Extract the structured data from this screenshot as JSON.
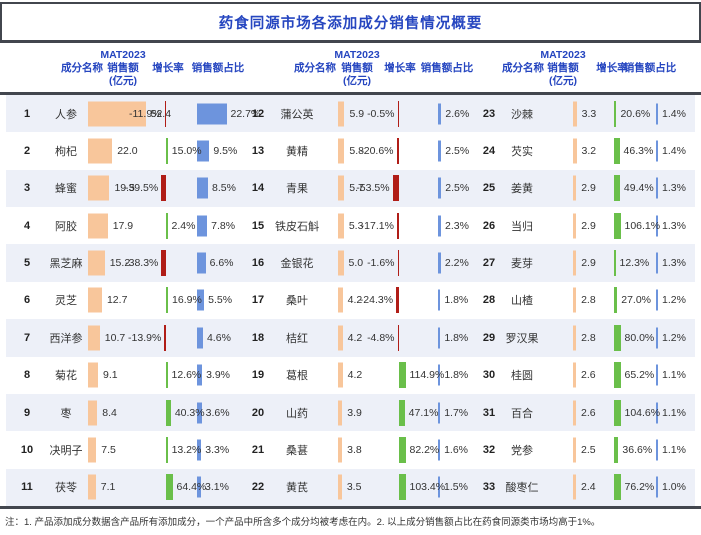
{
  "title": "药食同源市场各添加成分销售情况概要",
  "header": {
    "name": "成分名称",
    "sales_lines": [
      "MAT2023",
      "销售额",
      "(亿元)"
    ],
    "growth": "增长率",
    "share": "销售额占比"
  },
  "footnote": "注：1. 产品添加成分数据含产品所有添加成分，一个产品中所含多个成分均被考虑在内。2. 以上成分销售额占比在药食同源类市场均高于1%。",
  "colors": {
    "title_blue": "#2646c0",
    "bar_orange": "#f8c69b",
    "bar_blue": "#6d94dd",
    "bar_green": "#6abf4a",
    "bar_red": "#b01d17",
    "stripe": "#edf0f8",
    "rule": "#42464e"
  },
  "chart_data": {
    "type": "table",
    "title": "药食同源市场各添加成分销售情况概要",
    "columns": [
      "成分名称",
      "MAT2023销售额(亿元)",
      "增长率",
      "销售额占比"
    ],
    "sales_unit": "亿元",
    "groups": [
      {
        "rows": [
          {
            "rank": 1,
            "name": "人参",
            "sales": 52.4,
            "growth_pct": -11.9,
            "share_pct": 22.7
          },
          {
            "rank": 2,
            "name": "枸杞",
            "sales": 22.0,
            "growth_pct": 15.0,
            "share_pct": 9.5
          },
          {
            "rank": 3,
            "name": "蜂蜜",
            "sales": 19.5,
            "growth_pct": -39.5,
            "share_pct": 8.5
          },
          {
            "rank": 4,
            "name": "阿胶",
            "sales": 17.9,
            "growth_pct": 2.4,
            "share_pct": 7.8
          },
          {
            "rank": 5,
            "name": "黑芝麻",
            "sales": 15.2,
            "growth_pct": -38.3,
            "share_pct": 6.6
          },
          {
            "rank": 6,
            "name": "灵芝",
            "sales": 12.7,
            "growth_pct": 16.9,
            "share_pct": 5.5
          },
          {
            "rank": 7,
            "name": "西洋参",
            "sales": 10.7,
            "growth_pct": -13.9,
            "share_pct": 4.6
          },
          {
            "rank": 8,
            "name": "菊花",
            "sales": 9.1,
            "growth_pct": 12.6,
            "share_pct": 3.9
          },
          {
            "rank": 9,
            "name": "枣",
            "sales": 8.4,
            "growth_pct": 40.3,
            "share_pct": 3.6
          },
          {
            "rank": 10,
            "name": "决明子",
            "sales": 7.5,
            "growth_pct": 13.2,
            "share_pct": 3.3
          },
          {
            "rank": 11,
            "name": "茯苓",
            "sales": 7.1,
            "growth_pct": 64.4,
            "share_pct": 3.1
          }
        ]
      },
      {
        "rows": [
          {
            "rank": 12,
            "name": "蒲公英",
            "sales": 5.9,
            "growth_pct": -0.5,
            "share_pct": 2.6
          },
          {
            "rank": 13,
            "name": "黄精",
            "sales": 5.8,
            "growth_pct": -20.6,
            "share_pct": 2.5
          },
          {
            "rank": 14,
            "name": "青果",
            "sales": 5.7,
            "growth_pct": -53.5,
            "share_pct": 2.5
          },
          {
            "rank": 15,
            "name": "铁皮石斛",
            "sales": 5.3,
            "growth_pct": -17.1,
            "share_pct": 2.3
          },
          {
            "rank": 16,
            "name": "金银花",
            "sales": 5.0,
            "growth_pct": -1.6,
            "share_pct": 2.2
          },
          {
            "rank": 17,
            "name": "桑叶",
            "sales": 4.2,
            "growth_pct": -24.3,
            "share_pct": 1.8
          },
          {
            "rank": 18,
            "name": "桔红",
            "sales": 4.2,
            "growth_pct": -4.8,
            "share_pct": 1.8
          },
          {
            "rank": 19,
            "name": "葛根",
            "sales": 4.2,
            "growth_pct": 114.9,
            "share_pct": 1.8
          },
          {
            "rank": 20,
            "name": "山药",
            "sales": 3.9,
            "growth_pct": 47.1,
            "share_pct": 1.7
          },
          {
            "rank": 21,
            "name": "桑葚",
            "sales": 3.8,
            "growth_pct": 82.2,
            "share_pct": 1.6
          },
          {
            "rank": 22,
            "name": "黄芪",
            "sales": 3.5,
            "growth_pct": 103.4,
            "share_pct": 1.5
          }
        ]
      },
      {
        "rows": [
          {
            "rank": 23,
            "name": "沙棘",
            "sales": 3.3,
            "growth_pct": 20.6,
            "share_pct": 1.4
          },
          {
            "rank": 24,
            "name": "芡实",
            "sales": 3.2,
            "growth_pct": 46.3,
            "share_pct": 1.4
          },
          {
            "rank": 25,
            "name": "姜黄",
            "sales": 2.9,
            "growth_pct": 49.4,
            "share_pct": 1.3
          },
          {
            "rank": 26,
            "name": "当归",
            "sales": 2.9,
            "growth_pct": 106.1,
            "share_pct": 1.3
          },
          {
            "rank": 27,
            "name": "麦芽",
            "sales": 2.9,
            "growth_pct": 12.3,
            "share_pct": 1.3
          },
          {
            "rank": 28,
            "name": "山楂",
            "sales": 2.8,
            "growth_pct": 27.0,
            "share_pct": 1.2
          },
          {
            "rank": 29,
            "name": "罗汉果",
            "sales": 2.8,
            "growth_pct": 80.0,
            "share_pct": 1.2
          },
          {
            "rank": 30,
            "name": "桂圆",
            "sales": 2.6,
            "growth_pct": 65.2,
            "share_pct": 1.1
          },
          {
            "rank": 31,
            "name": "百合",
            "sales": 2.6,
            "growth_pct": 104.6,
            "share_pct": 1.1
          },
          {
            "rank": 32,
            "name": "党参",
            "sales": 2.5,
            "growth_pct": 36.6,
            "share_pct": 1.1
          },
          {
            "rank": 33,
            "name": "酸枣仁",
            "sales": 2.4,
            "growth_pct": 76.2,
            "share_pct": 1.0
          }
        ]
      }
    ]
  }
}
